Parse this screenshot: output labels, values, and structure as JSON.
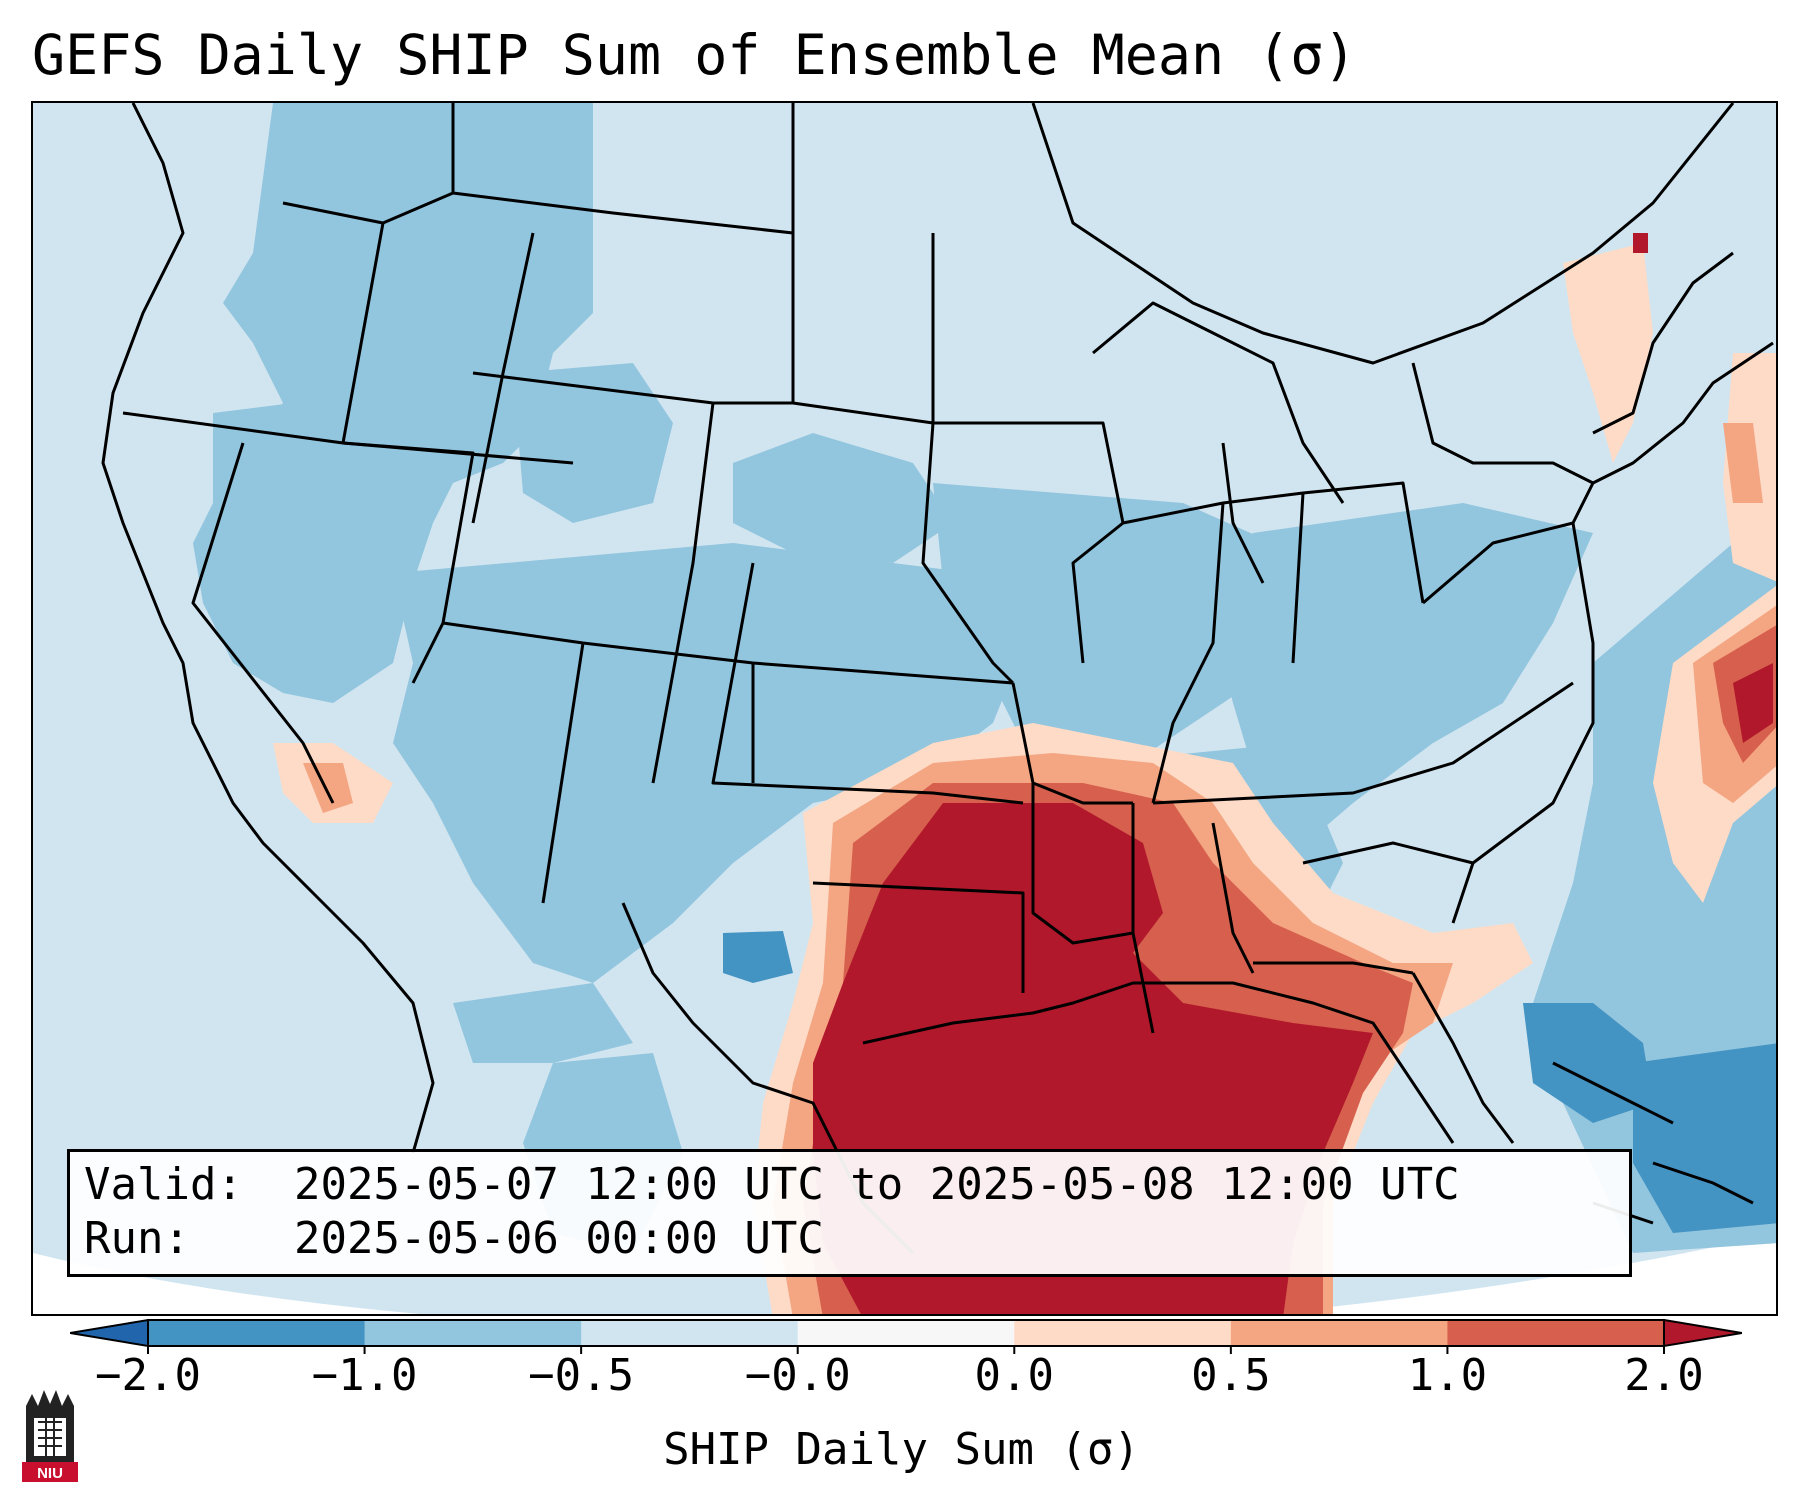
{
  "title": "GEFS Daily SHIP Sum of Ensemble Mean (σ)",
  "info": {
    "valid_key": "Valid:",
    "valid_value": "2025-05-07 12:00 UTC to 2025-05-08 12:00 UTC",
    "run_key": "Run:",
    "run_value": "2025-05-06 00:00 UTC"
  },
  "colorbar": {
    "label": "SHIP Daily Sum (σ)",
    "ticks": [
      "−2.0",
      "−1.0",
      "−0.5",
      "−0.0",
      "0.0",
      "0.5",
      "1.0",
      "2.0"
    ],
    "colors": [
      "#4393c3",
      "#92c5de",
      "#d1e5f0",
      "#f7f7f7",
      "#fddbc7",
      "#f4a582",
      "#d6604d"
    ],
    "extend_low_color": "#2166ac",
    "extend_high_color": "#b2182b"
  },
  "map_colors": {
    "high": "#b2182b",
    "mod_high": "#d6604d",
    "low_high": "#f4a582",
    "slight_high": "#fddbc7",
    "neutral_neg": "#d1e5f0",
    "mod_neg": "#92c5de",
    "low_neg": "#4393c3",
    "boundary": "#000000"
  },
  "logo_text": "NIU"
}
